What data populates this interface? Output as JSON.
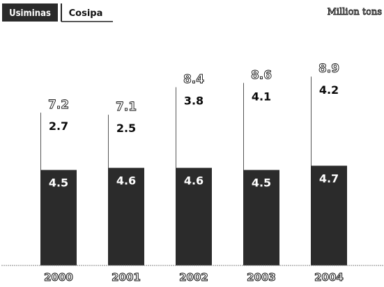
{
  "legend": {
    "series_1": "Usiminas",
    "series_2": "Cosipa"
  },
  "unit": "Million tons",
  "colors": {
    "usiminas": "#2b2b2b",
    "cosipa": "#ffffff",
    "axis": "#8a8a8a"
  },
  "chart_data": {
    "type": "bar",
    "stacked": true,
    "categories": [
      "2000",
      "2001",
      "2002",
      "2003",
      "2004"
    ],
    "series": [
      {
        "name": "Usiminas",
        "values": [
          4.5,
          4.6,
          4.6,
          4.5,
          4.7
        ]
      },
      {
        "name": "Cosipa",
        "values": [
          2.7,
          2.5,
          3.8,
          4.1,
          4.2
        ]
      }
    ],
    "totals": [
      7.2,
      7.1,
      8.4,
      8.6,
      8.9
    ],
    "ylim": [
      0,
      9.3
    ],
    "grid": false,
    "legend_position": "top-left"
  }
}
